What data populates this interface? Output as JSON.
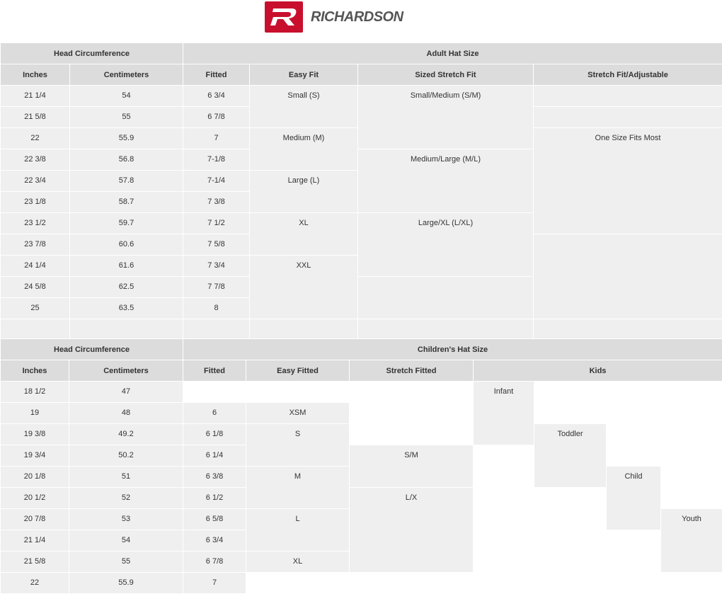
{
  "brand": {
    "name": "RICHARDSON",
    "mark": "R",
    "color": "#c8102e"
  },
  "adult": {
    "group_left": "Head Circumference",
    "group_right": "Adult Hat Size",
    "headers": [
      "Inches",
      "Centimeters",
      "Fitted",
      "Easy Fit",
      "Sized Stretch Fit",
      "Stretch Fit/Adjustable"
    ],
    "rows_count": 12,
    "columns": [
      [
        {
          "t": "21 1/4"
        },
        {
          "t": "21 5/8"
        },
        {
          "t": "22"
        },
        {
          "t": "22 3/8"
        },
        {
          "t": "22 3/4"
        },
        {
          "t": "23 1/8"
        },
        {
          "t": "23 1/2"
        },
        {
          "t": "23 7/8"
        },
        {
          "t": "24 1/4"
        },
        {
          "t": "24 5/8"
        },
        {
          "t": "25"
        },
        {
          "t": ""
        }
      ],
      [
        {
          "t": "54"
        },
        {
          "t": "55"
        },
        {
          "t": "55.9"
        },
        {
          "t": "56.8"
        },
        {
          "t": "57.8"
        },
        {
          "t": "58.7"
        },
        {
          "t": "59.7"
        },
        {
          "t": "60.6"
        },
        {
          "t": "61.6"
        },
        {
          "t": "62.5"
        },
        {
          "t": "63.5"
        },
        {
          "t": ""
        }
      ],
      [
        {
          "t": "6 3/4"
        },
        {
          "t": "6 7/8"
        },
        {
          "t": "7"
        },
        {
          "t": "7-1/8"
        },
        {
          "t": "7-1/4"
        },
        {
          "t": "7 3/8"
        },
        {
          "t": "7 1/2"
        },
        {
          "t": "7 5/8"
        },
        {
          "t": "7 3/4"
        },
        {
          "t": "7 7/8"
        },
        {
          "t": "8"
        },
        {
          "t": ""
        }
      ],
      [
        {
          "t": "Small (S)",
          "rows": 2
        },
        {
          "t": "Medium (M)",
          "rows": 2
        },
        {
          "t": "Large (L)",
          "rows": 2
        },
        {
          "t": "XL",
          "rows": 2
        },
        {
          "t": "XXL",
          "rows": 3
        },
        {
          "t": ""
        }
      ],
      [
        {
          "t": "Small/Medium (S/M)",
          "rows": 3
        },
        {
          "t": "Medium/Large (M/L)",
          "rows": 3
        },
        {
          "t": "Large/XL (L/XL)",
          "rows": 3
        },
        {
          "t": "",
          "rows": 2
        },
        {
          "t": ""
        }
      ],
      [
        {
          "t": ""
        },
        {
          "t": ""
        },
        {
          "t": "One Size Fits Most",
          "rows": 5
        },
        {
          "t": "",
          "rows": 4
        },
        {
          "t": ""
        }
      ]
    ]
  },
  "children": {
    "group_left": "Head Circumference",
    "group_right": "Children's Hat Size",
    "headers": [
      "Inches",
      "Centimeters",
      "Fitted",
      "Easy Fitted",
      "Stretch Fitted",
      "Kids"
    ],
    "rows_count": 10,
    "columns": [
      [
        {
          "t": "18 1/2"
        },
        {
          "t": "19"
        },
        {
          "t": "19 3/8"
        },
        {
          "t": "19 3/4"
        },
        {
          "t": "20 1/8"
        },
        {
          "t": "20 1/2"
        },
        {
          "t": "20 7/8"
        },
        {
          "t": "21 1/4"
        },
        {
          "t": "21 5/8"
        },
        {
          "t": "22"
        }
      ],
      [
        {
          "t": "47"
        },
        {
          "t": "48"
        },
        {
          "t": "49.2"
        },
        {
          "t": "50.2"
        },
        {
          "t": "51"
        },
        {
          "t": "52"
        },
        {
          "t": "53"
        },
        {
          "t": "54"
        },
        {
          "t": "55"
        },
        {
          "t": "55.9"
        }
      ],
      [
        {
          "t": "",
          "empty": true
        },
        {
          "t": "6"
        },
        {
          "t": "6 1/8"
        },
        {
          "t": "6 1/4"
        },
        {
          "t": "6 3/8"
        },
        {
          "t": "6 1/2"
        },
        {
          "t": "6 5/8"
        },
        {
          "t": "6 3/4"
        },
        {
          "t": "6 7/8"
        },
        {
          "t": "7"
        }
      ],
      [
        {
          "t": "",
          "empty": true
        },
        {
          "t": "XSM"
        },
        {
          "t": "S",
          "rows": 2
        },
        {
          "t": "M",
          "rows": 2
        },
        {
          "t": "L",
          "rows": 2
        },
        {
          "t": "XL"
        },
        {
          "t": "",
          "empty": true
        }
      ],
      [
        {
          "t": "",
          "rows": 3,
          "empty": true
        },
        {
          "t": "S/M",
          "rows": 2
        },
        {
          "t": "L/X",
          "rows": 4
        },
        {
          "t": "",
          "empty": true
        }
      ],
      [
        {
          "t": "Infant",
          "rows": 3
        },
        {
          "t": "",
          "rows": 7,
          "empty": true
        }
      ],
      [
        {
          "t": "",
          "rows": 2,
          "empty": true
        },
        {
          "t": "Toddler",
          "rows": 3
        },
        {
          "t": "",
          "rows": 5,
          "empty": true
        }
      ],
      [
        {
          "t": "",
          "rows": 4,
          "empty": true
        },
        {
          "t": "Child",
          "rows": 3
        },
        {
          "t": "",
          "rows": 3,
          "empty": true
        }
      ],
      [
        {
          "t": "",
          "rows": 6,
          "empty": true
        },
        {
          "t": "Youth",
          "rows": 3
        },
        {
          "t": "",
          "empty": true
        }
      ]
    ]
  }
}
